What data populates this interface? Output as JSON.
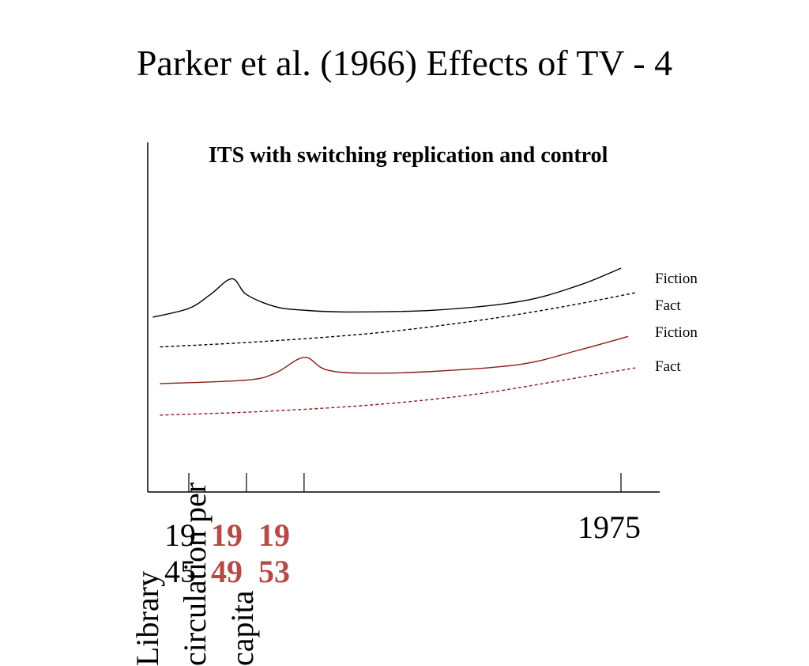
{
  "slide": {
    "title": "Parker et al. (1966) Effects of TV - 4"
  },
  "chart_data": {
    "type": "line",
    "title": "ITS with switching replication and control",
    "ylabel": "Library circulation per capita",
    "xlabel": "",
    "x_tick_labels": [
      {
        "top": "19",
        "bottom": "45",
        "year": 1945,
        "highlight": false
      },
      {
        "top": "19",
        "bottom": "49",
        "year": 1949,
        "highlight": true
      },
      {
        "top": "19",
        "bottom": "53",
        "year": 1953,
        "highlight": true
      },
      {
        "top": "1975",
        "bottom": "",
        "year": 1975,
        "highlight": false
      }
    ],
    "xlim": [
      1941,
      1978
    ],
    "ylim": [
      0,
      100
    ],
    "grid": false,
    "legend": "right-end labels",
    "series": [
      {
        "name": "Fiction",
        "color": "#000000",
        "dash": false,
        "points": [
          [
            1942.5,
            50
          ],
          [
            1945,
            52.5
          ],
          [
            1946.5,
            56.5
          ],
          [
            1948,
            61
          ],
          [
            1949,
            56.5
          ],
          [
            1951,
            53
          ],
          [
            1953,
            52
          ],
          [
            1956,
            51.5
          ],
          [
            1962,
            52
          ],
          [
            1968,
            54.5
          ],
          [
            1972,
            59
          ],
          [
            1975,
            64
          ]
        ]
      },
      {
        "name": "Fact",
        "color": "#000000",
        "dash": true,
        "points": [
          [
            1943,
            41.5
          ],
          [
            1950,
            43
          ],
          [
            1958,
            45.5
          ],
          [
            1965,
            49
          ],
          [
            1971,
            53
          ],
          [
            1976,
            57
          ]
        ]
      },
      {
        "name": "Fiction",
        "color": "#8b1a1a",
        "dash": false,
        "points": [
          [
            1943,
            31
          ],
          [
            1949,
            32
          ],
          [
            1951,
            34
          ],
          [
            1953,
            38.5
          ],
          [
            1954.5,
            35
          ],
          [
            1957,
            34
          ],
          [
            1962,
            34.5
          ],
          [
            1968,
            36.5
          ],
          [
            1972,
            40.5
          ],
          [
            1975.5,
            44.5
          ]
        ]
      },
      {
        "name": "Fact",
        "color": "#8b1a1a",
        "dash": true,
        "points": [
          [
            1943,
            22
          ],
          [
            1950,
            23
          ],
          [
            1958,
            25
          ],
          [
            1965,
            28
          ],
          [
            1971,
            32
          ],
          [
            1976,
            35.5
          ]
        ]
      }
    ],
    "colors": {
      "axis": "#000000",
      "switch_label": "#b84a45"
    }
  }
}
